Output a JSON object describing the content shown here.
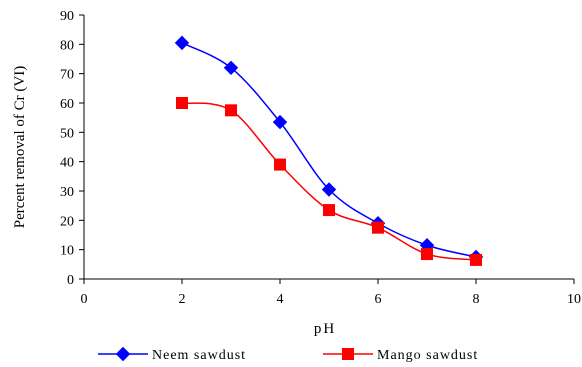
{
  "chart_data": {
    "type": "line",
    "xlabel": "pH",
    "ylabel": "Percent removal of Cr (VI)",
    "xlim": [
      0,
      10
    ],
    "ylim": [
      0,
      90
    ],
    "xticks": [
      0,
      2,
      4,
      6,
      8,
      10
    ],
    "yticks": [
      0,
      10,
      20,
      30,
      40,
      50,
      60,
      70,
      80,
      90
    ],
    "grid": false,
    "legend_position": "bottom",
    "series": [
      {
        "name": "Neem sawdust",
        "color": "#0000ff",
        "marker": "diamond",
        "x": [
          2,
          3,
          4,
          5,
          6,
          7,
          8
        ],
        "y": [
          80.5,
          72,
          53.5,
          30.5,
          19,
          11.5,
          7.5
        ]
      },
      {
        "name": "Mango sawdust",
        "color": "#ff0000",
        "marker": "square",
        "x": [
          2,
          3,
          4,
          5,
          6,
          7,
          8
        ],
        "y": [
          60,
          57.5,
          39,
          23.5,
          17.5,
          8.5,
          6.5
        ]
      }
    ]
  }
}
